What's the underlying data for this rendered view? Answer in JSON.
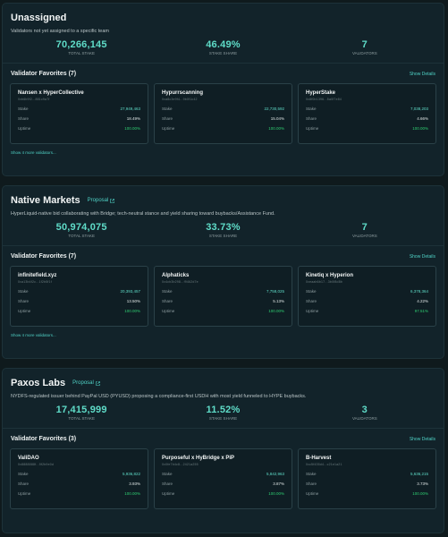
{
  "sections": [
    {
      "title": "Unassigned",
      "proposal": "",
      "description": "Validators not yet assigned to a specific team",
      "stats": [
        {
          "value": "70,266,145",
          "label": "TOTAL STAKE"
        },
        {
          "value": "46.49%",
          "label": "STAKE SHARE"
        },
        {
          "value": "7",
          "label": "VALIDATORS"
        }
      ],
      "favorites_title": "Validator Favorites (7)",
      "show_details": "Show Details",
      "cards": [
        {
          "name": "Nansen x HyperCollective",
          "addr": "0xb6b9f2...881c9a7f",
          "stake_label": "Stake",
          "stake": "27,949,463",
          "share_label": "Share",
          "share": "18.49%",
          "uptime_label": "Uptime",
          "uptime": "100.00%"
        },
        {
          "name": "Hypurrscanning",
          "addr": "0xa8c3e9f4...9b0f1c42",
          "stake_label": "Stake",
          "stake": "22,730,592",
          "share_label": "Share",
          "share": "15.04%",
          "uptime_label": "Uptime",
          "uptime": "100.00%"
        },
        {
          "name": "HyperStake",
          "addr": "0x8f0b1396...5a0f7e84",
          "stake_label": "Stake",
          "stake": "7,038,203",
          "share_label": "Share",
          "share": "4.66%",
          "uptime_label": "Uptime",
          "uptime": "100.00%"
        }
      ],
      "show_more": "Show 4 more validators..."
    },
    {
      "title": "Native Markets",
      "proposal": "Proposal",
      "description": "HyperLiquid-native bid collaborating with Bridge; tech-neutral stance and yield sharing toward buybacks/Assistance Fund.",
      "stats": [
        {
          "value": "50,974,075",
          "label": "TOTAL STAKE"
        },
        {
          "value": "33.73%",
          "label": "STAKE SHARE"
        },
        {
          "value": "7",
          "label": "VALIDATORS"
        }
      ],
      "favorites_title": "Validator Favorites (7)",
      "show_details": "Show Details",
      "cards": [
        {
          "name": "infinitefield.xyz",
          "addr": "0xa13b4f2c...1f2b5f1f",
          "stake_label": "Stake",
          "stake": "20,393,457",
          "share_label": "Share",
          "share": "13.50%",
          "uptime_label": "Uptime",
          "uptime": "100.00%"
        },
        {
          "name": "Alphaticks",
          "addr": "0x4cb3b298...f9462d7e",
          "stake_label": "Stake",
          "stake": "7,758,025",
          "share_label": "Share",
          "share": "5.13%",
          "uptime_label": "Uptime",
          "uptime": "100.00%"
        },
        {
          "name": "Kinetiq x Hyperion",
          "addr": "0xeaab6b17...3b0f8d8b",
          "stake_label": "Stake",
          "stake": "6,378,364",
          "share_label": "Share",
          "share": "4.22%",
          "uptime_label": "Uptime",
          "uptime": "97.51%"
        }
      ],
      "show_more": "Show 4 more validators..."
    },
    {
      "title": "Paxos Labs",
      "proposal": "Proposal",
      "description": "NYDFS-regulated issuer behind PayPal USD (PYUSD) proposing a compliance-first USDH with most yield funneled to HYPE buybacks.",
      "stats": [
        {
          "value": "17,415,999",
          "label": "TOTAL STAKE"
        },
        {
          "value": "11.52%",
          "label": "STAKE SHARE"
        },
        {
          "value": "3",
          "label": "VALIDATORS"
        }
      ],
      "favorites_title": "Validator Favorites (3)",
      "show_details": "Show Details",
      "cards": [
        {
          "name": "ValiDAO",
          "addr": "0x8888888f...9f2b9e0d",
          "stake_label": "Stake",
          "stake": "5,936,822",
          "share_label": "Share",
          "share": "3.93%",
          "uptime_label": "Uptime",
          "uptime": "100.00%"
        },
        {
          "name": "Purposeful x HyBridge x PiP",
          "addr": "0x0fe7b4c8...2421a255",
          "stake_label": "Stake",
          "stake": "5,842,963",
          "share_label": "Share",
          "share": "3.87%",
          "uptime_label": "Uptime",
          "uptime": "100.00%"
        },
        {
          "name": "B-Harvest",
          "addr": "0xc5f435d4...c21e1a21",
          "stake_label": "Stake",
          "stake": "5,636,215",
          "share_label": "Share",
          "share": "3.73%",
          "uptime_label": "Uptime",
          "uptime": "100.00%"
        }
      ],
      "show_more": ""
    }
  ]
}
